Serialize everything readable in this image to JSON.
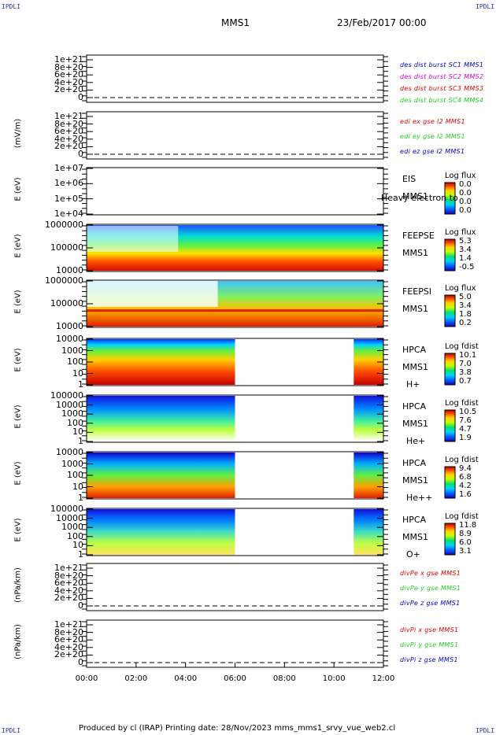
{
  "corners": {
    "tl": "IPDLI",
    "tr": "IPDLI",
    "bl": "IPDLI",
    "br": "IPDLI"
  },
  "header": {
    "title": "MMS1",
    "date": "23/Feb/2017 00:00"
  },
  "footer": "Produced by cl (IRAP)   Printing date: 28/Nov/2023   mms_mms1_srvy_vue_web2.cl",
  "colors": {
    "blue": "#0000cc",
    "magenta": "#cc00cc",
    "red": "#dd0000",
    "green": "#22cc22"
  },
  "chart_data": {
    "type": "heatmap",
    "x_ticks": [
      "00:00",
      "02:00",
      "04:00",
      "06:00",
      "08:00",
      "10:00",
      "12:00"
    ],
    "x_range_hours": [
      0,
      12
    ],
    "panels": [
      {
        "id": "des",
        "ylabel": "",
        "yticks": [
          "1e+21",
          "8e+20",
          "6e+20",
          "4e+20",
          "2e+20",
          "0"
        ],
        "legend": [
          {
            "text": "des dist burst SC1 MMS1",
            "color": "blue"
          },
          {
            "text": "des dist burst SC2 MMS2",
            "color": "magenta"
          },
          {
            "text": "des dist burst SC3 MMS3",
            "color": "red"
          },
          {
            "text": "des dist burst SC4 MMS4",
            "color": "green"
          }
        ]
      },
      {
        "id": "edi",
        "ylabel": "(mV/m)",
        "yticks": [
          "1e+21",
          "8e+20",
          "6e+20",
          "4e+20",
          "2e+20",
          "0"
        ],
        "legend": [
          {
            "text": "edi ex gse l2 MMS1",
            "color": "red"
          },
          {
            "text": "edi ey gse l2 MMS1",
            "color": "green"
          },
          {
            "text": "edi ez gse l2 MMS1",
            "color": "blue"
          }
        ]
      },
      {
        "id": "eis",
        "ylabel": "E (eV)",
        "yticks": [
          "1e+07",
          "1e+06",
          "1e+05",
          "1e+04"
        ],
        "side": [
          "EIS",
          "MMS1"
        ],
        "overlay": "Heavy electron to",
        "scale_title": "Log flux",
        "scale": [
          "0.0",
          "0.0",
          "0.0",
          "0.0"
        ],
        "data": "empty"
      },
      {
        "id": "feepse",
        "ylabel": "E (eV)",
        "yticks": [
          "1000000",
          "100000",
          "10000"
        ],
        "side": [
          "FEEPSE",
          "MMS1"
        ],
        "scale_title": "Log flux",
        "scale": [
          "5.3",
          "3.4",
          "1.4",
          "-0.5"
        ]
      },
      {
        "id": "feepsi",
        "ylabel": "E (eV)",
        "yticks": [
          "1000000",
          "100000",
          "10000"
        ],
        "side": [
          "FEEPSI",
          "MMS1"
        ],
        "scale_title": "Log flux",
        "scale": [
          "5.0",
          "3.4",
          "1.8",
          "0.2"
        ]
      },
      {
        "id": "hpca_h",
        "ylabel": "E (eV)",
        "yticks": [
          "10000",
          "1000",
          "100",
          "10",
          "1"
        ],
        "side": [
          "HPCA",
          "MMS1",
          "H+"
        ],
        "scale_title": "Log fdist",
        "scale": [
          "10.1",
          "7.0",
          "3.8",
          "0.7"
        ],
        "coverage_hours": [
          [
            0,
            6
          ],
          [
            10.8,
            12
          ]
        ]
      },
      {
        "id": "hpca_he",
        "ylabel": "E (eV)",
        "yticks": [
          "100000",
          "10000",
          "1000",
          "100",
          "10",
          "1"
        ],
        "side": [
          "HPCA",
          "MMS1",
          "He+"
        ],
        "scale_title": "Log fdist",
        "scale": [
          "10.5",
          "7.6",
          "4.7",
          "1.9"
        ],
        "coverage_hours": [
          [
            0,
            6
          ],
          [
            10.8,
            12
          ]
        ]
      },
      {
        "id": "hpca_hepp",
        "ylabel": "E (eV)",
        "yticks": [
          "10000",
          "1000",
          "100",
          "10",
          "1"
        ],
        "side": [
          "HPCA",
          "MMS1",
          "He++"
        ],
        "scale_title": "Log fdist",
        "scale": [
          "9.4",
          "6.8",
          "4.2",
          "1.6"
        ],
        "coverage_hours": [
          [
            0,
            6
          ],
          [
            10.8,
            12
          ]
        ]
      },
      {
        "id": "hpca_o",
        "ylabel": "E (eV)",
        "yticks": [
          "100000",
          "10000",
          "1000",
          "100",
          "10",
          "1"
        ],
        "side": [
          "HPCA",
          "MMS1",
          "O+"
        ],
        "scale_title": "Log fdist",
        "scale": [
          "11.8",
          "8.9",
          "6.0",
          "3.1"
        ],
        "coverage_hours": [
          [
            0,
            6
          ],
          [
            10.8,
            12
          ]
        ]
      },
      {
        "id": "divpe",
        "ylabel": "(nPa/km)",
        "yticks": [
          "1e+21",
          "8e+20",
          "6e+20",
          "4e+20",
          "2e+20",
          "0"
        ],
        "legend": [
          {
            "text": "divPe x gse MMS1",
            "color": "red"
          },
          {
            "text": "divPe y gse MMS1",
            "color": "green"
          },
          {
            "text": "divPe z gse MMS1",
            "color": "blue"
          }
        ]
      },
      {
        "id": "divpi",
        "ylabel": "(nPa/km)",
        "yticks": [
          "1e+21",
          "8e+20",
          "6e+20",
          "4e+20",
          "2e+20",
          "0"
        ],
        "legend": [
          {
            "text": "divPi x gse MMS1",
            "color": "red"
          },
          {
            "text": "divPi y gse MMS1",
            "color": "green"
          },
          {
            "text": "divPi z gse MMS1",
            "color": "blue"
          }
        ]
      }
    ]
  }
}
